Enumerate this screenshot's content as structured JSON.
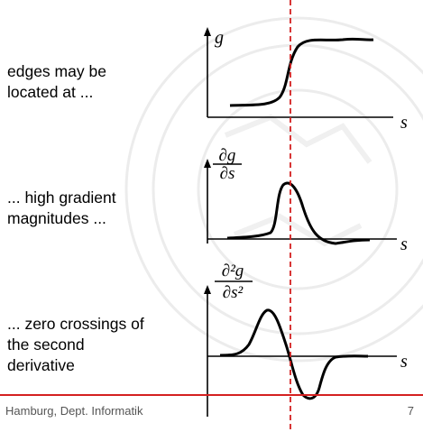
{
  "captions": {
    "edges": "edges may be\nlocated at ...",
    "gradient": "... high gradient\nmagnitudes ...",
    "zero": "... zero crossings of\nthe second\nderivative"
  },
  "axis_labels": {
    "g": "g",
    "s1": "s",
    "s2": "s",
    "s3": "s",
    "dg_num": "∂g",
    "dg_den": "∂s",
    "d2g_num": "∂²g",
    "d2g_den": "∂s²"
  },
  "footer": {
    "left": "Hamburg, Dept. Informatik",
    "page": "7"
  },
  "colors": {
    "accent": "#d42020",
    "curve": "#000000",
    "watermark": "#e6e6e6"
  }
}
